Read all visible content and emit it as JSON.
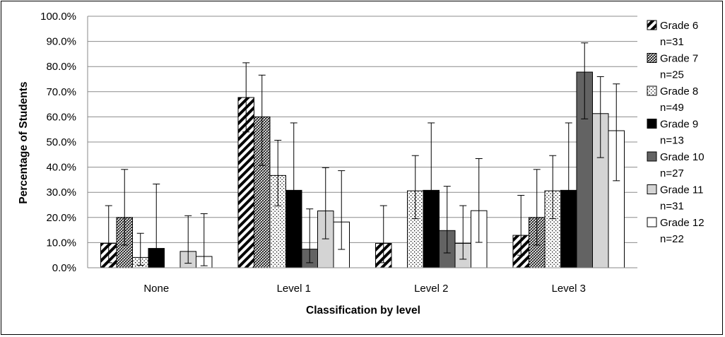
{
  "chart_data": {
    "type": "bar",
    "title": "",
    "xlabel": "Classification by level",
    "ylabel": "Percentage of Students",
    "ylim": [
      0,
      100
    ],
    "y_ticks": [
      "0.0%",
      "10.0%",
      "20.0%",
      "30.0%",
      "40.0%",
      "50.0%",
      "60.0%",
      "70.0%",
      "80.0%",
      "90.0%",
      "100.0%"
    ],
    "grid": true,
    "legend_position": "right",
    "error_bars": true,
    "categories": [
      "None",
      "Level 1",
      "Level 2",
      "Level 3"
    ],
    "series": [
      {
        "name": "Grade 6",
        "n_label": "n=31",
        "pattern": "diagonal-stripes",
        "values": [
          9.7,
          67.7,
          9.7,
          12.9
        ],
        "err_low": [
          2.0,
          54.0,
          2.0,
          5.0
        ],
        "err_high": [
          24.7,
          81.5,
          24.7,
          28.8
        ]
      },
      {
        "name": "Grade 7",
        "n_label": "n=25",
        "pattern": "dense-crosshatch",
        "values": [
          20.0,
          60.0,
          0.0,
          20.0
        ],
        "err_low": [
          9.0,
          40.7,
          0.0,
          9.0
        ],
        "err_high": [
          39.1,
          76.6,
          0.0,
          39.1
        ]
      },
      {
        "name": "Grade 8",
        "n_label": "n=49",
        "pattern": "dots",
        "values": [
          4.1,
          36.7,
          30.6,
          30.6
        ],
        "err_low": [
          1.0,
          24.6,
          19.5,
          19.5
        ],
        "err_high": [
          13.7,
          50.7,
          44.6,
          44.6
        ]
      },
      {
        "name": "Grade 9",
        "n_label": "n=13",
        "pattern": "solid-black",
        "color": "#000000",
        "values": [
          7.7,
          30.8,
          30.8,
          30.8
        ],
        "err_low": [
          0.0,
          12.7,
          12.7,
          12.7
        ],
        "err_high": [
          33.3,
          57.6,
          57.6,
          57.6
        ]
      },
      {
        "name": "Grade 10",
        "n_label": "n=27",
        "pattern": "solid",
        "color": "#636363",
        "values": [
          0.0,
          7.4,
          14.8,
          77.8
        ],
        "err_low": [
          0.0,
          2.0,
          5.9,
          59.2
        ],
        "err_high": [
          0.0,
          23.4,
          32.4,
          89.4
        ]
      },
      {
        "name": "Grade 11",
        "n_label": "n=31",
        "pattern": "solid",
        "color": "#d4d4d4",
        "values": [
          6.5,
          22.6,
          9.7,
          61.3
        ],
        "err_low": [
          1.8,
          11.5,
          3.4,
          43.8
        ],
        "err_high": [
          20.7,
          39.8,
          24.7,
          76.0
        ]
      },
      {
        "name": "Grade 12",
        "n_label": "n=22",
        "pattern": "solid",
        "color": "#ffffff",
        "values": [
          4.5,
          18.2,
          22.7,
          54.5
        ],
        "err_low": [
          0.8,
          7.3,
          10.1,
          34.6
        ],
        "err_high": [
          21.5,
          38.6,
          43.4,
          73.1
        ]
      }
    ]
  }
}
